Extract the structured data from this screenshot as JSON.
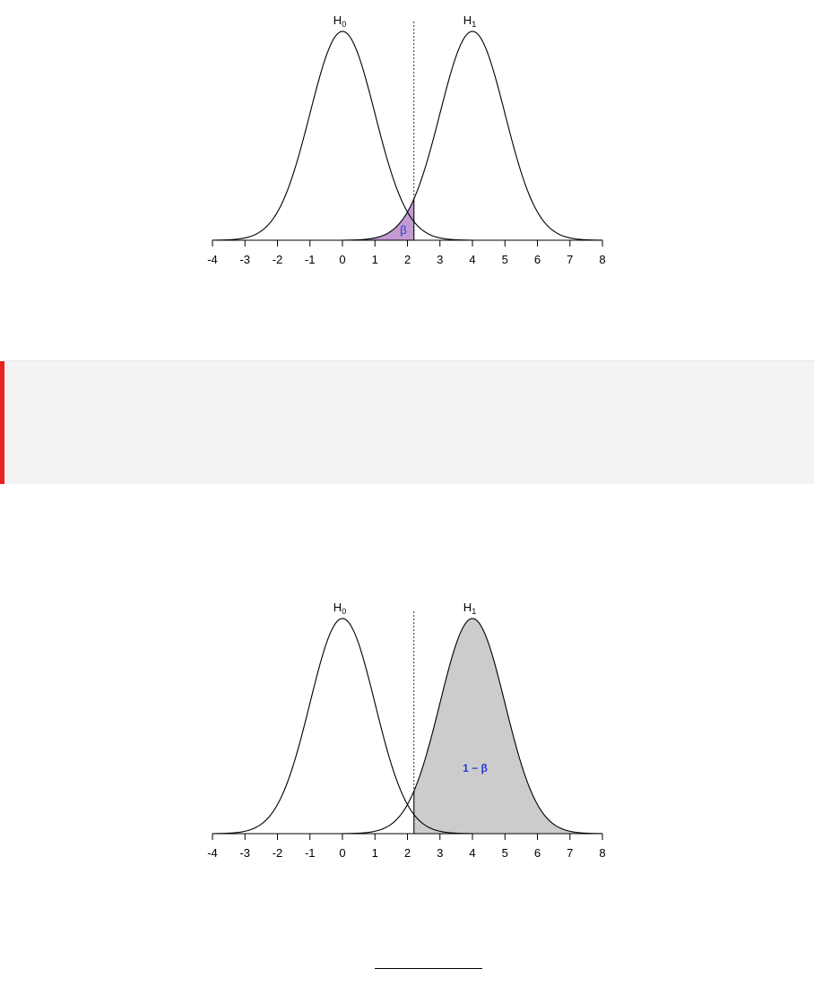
{
  "chart_data": [
    {
      "type": "area",
      "x_ticks": [
        -4,
        -3,
        -2,
        -1,
        0,
        1,
        2,
        3,
        4,
        5,
        6,
        7,
        8
      ],
      "xlim": [
        -4,
        8
      ],
      "series": [
        {
          "name": "H0",
          "mean": 0,
          "sd": 1,
          "x_range": [
            -4,
            4
          ]
        },
        {
          "name": "H1",
          "mean": 4,
          "sd": 1,
          "x_range": [
            0,
            8
          ]
        }
      ],
      "threshold": 2.2,
      "shaded_region": {
        "series": "H1",
        "from": 0,
        "to": 2.2,
        "label": "β",
        "color": "#c39bd3"
      },
      "curve_labels": [
        {
          "base": "H",
          "sub": "0",
          "series": "H0"
        },
        {
          "base": "H",
          "sub": "1",
          "series": "H1"
        }
      ],
      "grid": false,
      "colors": {
        "line": "#000000",
        "label": "#2a3bd6"
      }
    },
    {
      "type": "area",
      "x_ticks": [
        -4,
        -3,
        -2,
        -1,
        0,
        1,
        2,
        3,
        4,
        5,
        6,
        7,
        8
      ],
      "xlim": [
        -4,
        8
      ],
      "series": [
        {
          "name": "H0",
          "mean": 0,
          "sd": 1,
          "x_range": [
            -4,
            4
          ]
        },
        {
          "name": "H1",
          "mean": 4,
          "sd": 1,
          "x_range": [
            0,
            8
          ]
        }
      ],
      "threshold": 2.2,
      "shaded_region": {
        "series": "H1",
        "from": 2.2,
        "to": 8,
        "label": "1 − β",
        "color": "#cccccc"
      },
      "curve_labels": [
        {
          "base": "H",
          "sub": "0",
          "series": "H0"
        },
        {
          "base": "H",
          "sub": "1",
          "series": "H1"
        }
      ],
      "grid": false,
      "colors": {
        "line": "#000000",
        "label": "#2a3bd6"
      }
    }
  ],
  "callout": {
    "accent_color": "#e8221e"
  }
}
